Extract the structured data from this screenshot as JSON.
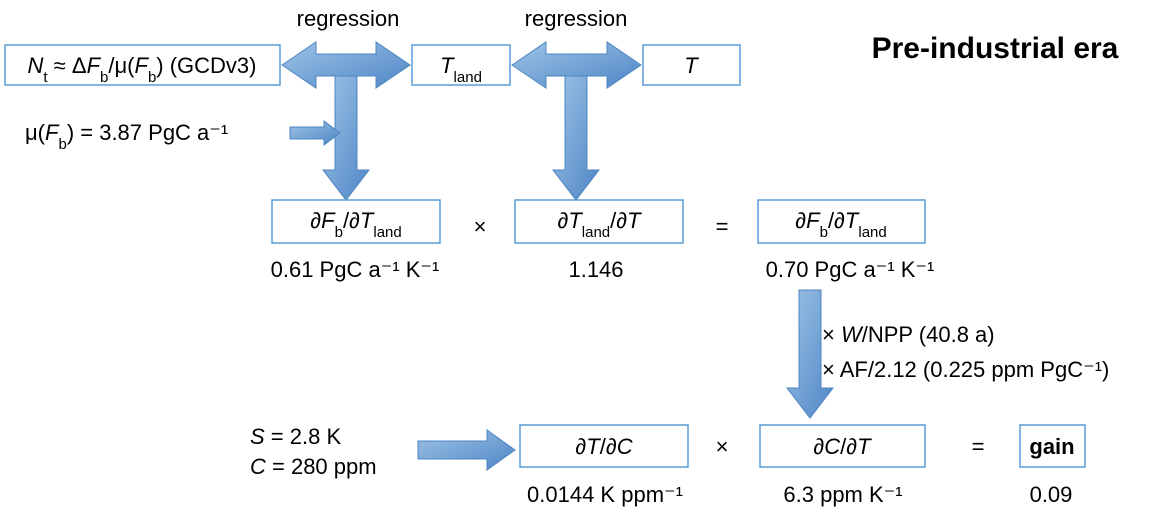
{
  "title": "Pre-industrial era",
  "regression_labels": [
    "regression",
    "regression"
  ],
  "nodes": [
    {
      "label": [
        "N",
        "t",
        " ≈ Δ",
        "F",
        "b",
        "/μ(",
        "F",
        "b",
        ") (GCDv3)"
      ]
    },
    {
      "label": [
        "T",
        "land"
      ]
    },
    {
      "label": [
        "T"
      ]
    },
    {
      "label": [
        "∂",
        "F",
        "b",
        "/∂",
        "T",
        "land"
      ]
    },
    {
      "label": [
        "∂",
        "T",
        "land",
        "/∂",
        "T"
      ]
    },
    {
      "label": [
        "∂",
        "F",
        "b",
        "/∂",
        "T",
        "land"
      ]
    },
    {
      "label": [
        "∂",
        "T",
        "/∂",
        "C"
      ]
    },
    {
      "label": [
        "∂",
        "C",
        "/∂",
        "T"
      ]
    },
    {
      "label": [
        "gain"
      ]
    }
  ],
  "operators": [
    "×",
    "=",
    "×",
    "="
  ],
  "values": [
    "0.61 PgC a⁻¹ K⁻¹",
    "1.146",
    "0.70 PgC a⁻¹ K⁻¹",
    "0.0144 K ppm⁻¹",
    "6.3 ppm K⁻¹",
    "0.09"
  ],
  "annotations": {
    "mu": [
      "μ(",
      "F",
      "b",
      ") = 3.87 PgC a⁻¹"
    ],
    "scaling": [
      [
        "× ",
        "W",
        "/NPP (40.8 a)"
      ],
      [
        "× AF/2.12 (0.225 ppm PgC⁻¹)"
      ]
    ],
    "inputs": [
      [
        "S",
        " = 2.8 K"
      ],
      [
        "C",
        " = 280 ppm"
      ]
    ]
  }
}
